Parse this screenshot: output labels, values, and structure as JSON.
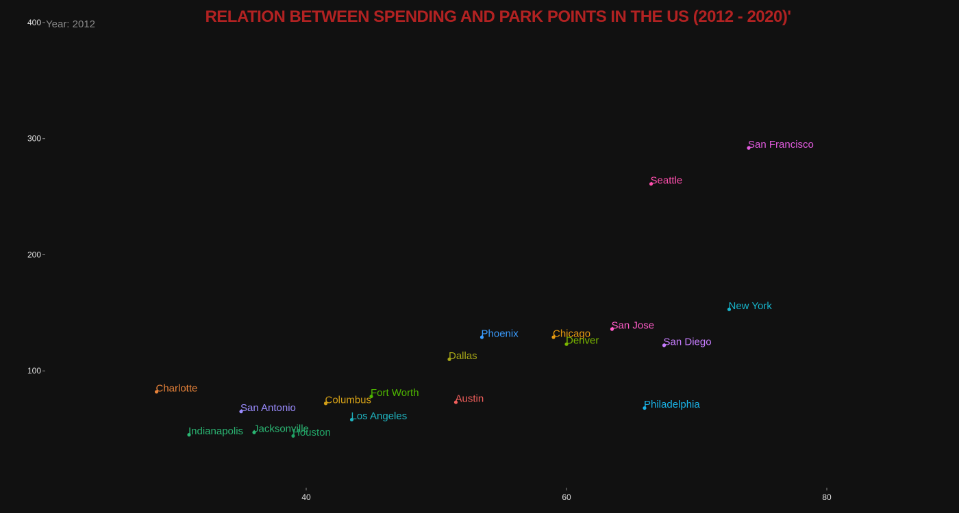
{
  "title": "RELATION BETWEEN SPENDING AND PARK POINTS IN THE US (2012 - 2020)'",
  "year_label": "Year: 2012",
  "colors": {
    "background": "#111111",
    "title": "#b22222",
    "year": "#8a8a8a",
    "tick": "#e0e0e0"
  },
  "chart_data": {
    "type": "scatter",
    "title": "RELATION BETWEEN SPENDING AND PARK POINTS IN THE US (2012 - 2020)'",
    "xlabel": "",
    "ylabel": "",
    "xlim": [
      20,
      87
    ],
    "ylim": [
      0,
      410
    ],
    "x_ticks": [
      40,
      60,
      80
    ],
    "y_ticks": [
      100,
      200,
      300,
      400
    ],
    "grid": false,
    "legend": "none",
    "points": [
      {
        "label": "Charlotte",
        "x": 28.5,
        "y": 82,
        "color": "#e8833a"
      },
      {
        "label": "Indianapolis",
        "x": 31,
        "y": 45,
        "color": "#2bb673"
      },
      {
        "label": "San Antonio",
        "x": 35,
        "y": 65,
        "color": "#9b8cff"
      },
      {
        "label": "Jacksonville",
        "x": 36,
        "y": 47,
        "color": "#2bb673"
      },
      {
        "label": "Houston",
        "x": 39,
        "y": 44,
        "color": "#21a366"
      },
      {
        "label": "Columbus",
        "x": 41.5,
        "y": 72,
        "color": "#d4a017"
      },
      {
        "label": "Fort Worth",
        "x": 45,
        "y": 78,
        "color": "#4fb800"
      },
      {
        "label": "Los Angeles",
        "x": 43.5,
        "y": 58,
        "color": "#1fb5c1"
      },
      {
        "label": "Dallas",
        "x": 51,
        "y": 110,
        "color": "#a6a617"
      },
      {
        "label": "Austin",
        "x": 51.5,
        "y": 73,
        "color": "#f25f5c"
      },
      {
        "label": "Phoenix",
        "x": 53.5,
        "y": 129,
        "color": "#3a9cff"
      },
      {
        "label": "Chicago",
        "x": 59,
        "y": 129,
        "color": "#e89a10"
      },
      {
        "label": "Denver",
        "x": 60,
        "y": 123,
        "color": "#7bb800"
      },
      {
        "label": "San Jose",
        "x": 63.5,
        "y": 136,
        "color": "#ff5cc8"
      },
      {
        "label": "San Diego",
        "x": 67.5,
        "y": 122,
        "color": "#c77dff"
      },
      {
        "label": "Philadelphia",
        "x": 66,
        "y": 68,
        "color": "#1ab2e6"
      },
      {
        "label": "Seattle",
        "x": 66.5,
        "y": 261,
        "color": "#ff4fae"
      },
      {
        "label": "New York",
        "x": 72.5,
        "y": 153,
        "color": "#17b3c9"
      },
      {
        "label": "San Francisco",
        "x": 74,
        "y": 292,
        "color": "#e35ce0"
      }
    ]
  }
}
